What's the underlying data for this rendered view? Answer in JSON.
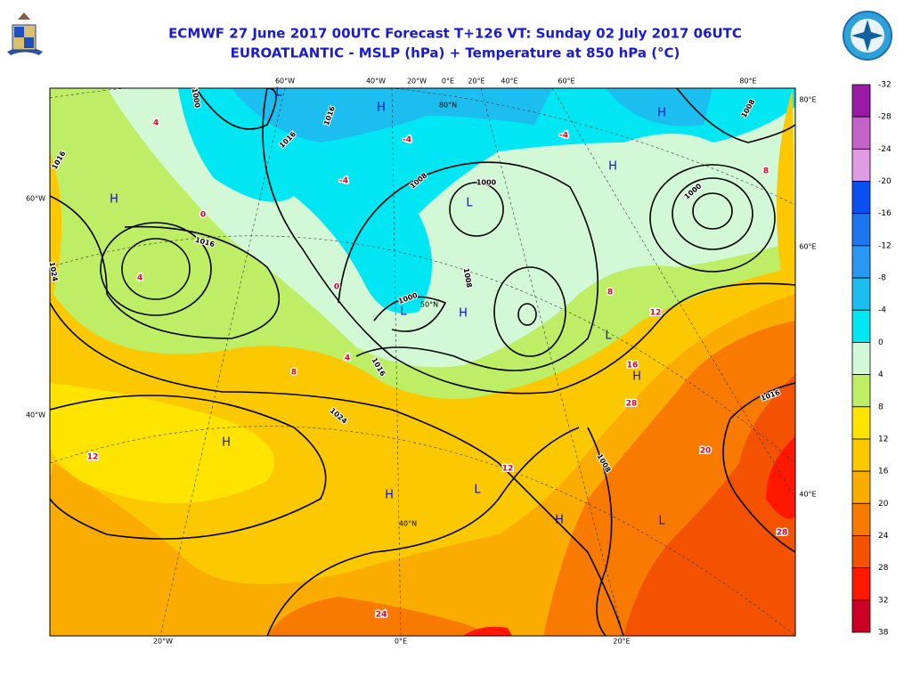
{
  "header": {
    "title_line1": "ECMWF 27 June 2017 00UTC Forecast T+126 VT: Sunday 02 July 2017 06UTC",
    "title_line2": "EUROATLANTIC - MSLP (hPa) + Temperature at 850 hPa (°C)"
  },
  "map": {
    "top_labels": [
      "60°W",
      "40°W",
      "20°W",
      "0°E",
      "20°E",
      "40°E",
      "60°E",
      "80°E"
    ],
    "left_labels": [
      "60°W",
      "40°W"
    ],
    "right_labels": [
      "80°E",
      "60°E",
      "40°E"
    ],
    "bottom_labels": [
      "20°W",
      "0°E",
      "20°E"
    ],
    "grid_labels": [
      "80°N",
      "50°N",
      "40°N"
    ],
    "pressure_centers": [
      "L",
      "H",
      "H",
      "H",
      "H",
      "L",
      "L",
      "H",
      "L",
      "H",
      "H",
      "H",
      "L",
      "H",
      "L"
    ],
    "isobar_labels": [
      "1016",
      "1016",
      "1016",
      "1008",
      "1000",
      "1000",
      "1016",
      "1024",
      "1016",
      "1000",
      "1008",
      "1016",
      "1000",
      "1008",
      "1008",
      "1024"
    ],
    "temperature_labels": [
      "4",
      "0",
      "-4",
      "-4",
      "4",
      "0",
      "4",
      "8",
      "8",
      "12",
      "12",
      "12",
      "16",
      "20",
      "28",
      "24",
      "28",
      "-4",
      "8"
    ]
  },
  "colorbar": {
    "levels": [
      -32,
      -28,
      -24,
      -20,
      -16,
      -12,
      -8,
      -4,
      0,
      4,
      8,
      12,
      16,
      20,
      24,
      28,
      32,
      38
    ],
    "colors": [
      "#9a1aa6",
      "#c464c8",
      "#e09ce2",
      "#0a4ff2",
      "#1f74f0",
      "#2a98f2",
      "#1cbef0",
      "#00e6f2",
      "#d2f8d6",
      "#bdee66",
      "#ffe400",
      "#fcc800",
      "#fbac00",
      "#f97a00",
      "#f35300",
      "#ff1800",
      "#cc0026"
    ]
  }
}
